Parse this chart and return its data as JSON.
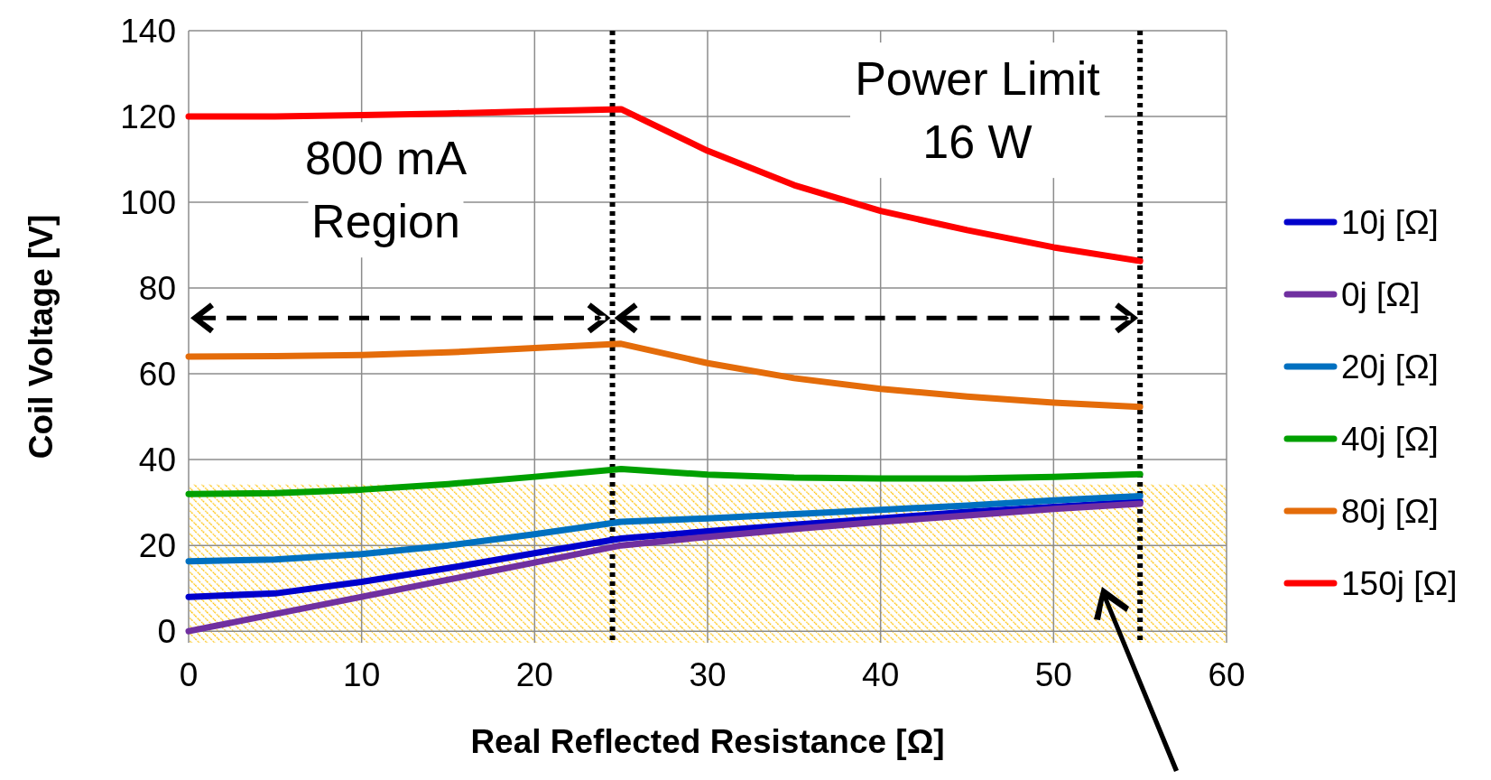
{
  "chart_data": {
    "type": "line",
    "xlabel": "Real Reflected Resistance [Ω]",
    "ylabel": "Coil Voltage [V]",
    "x": [
      0,
      5,
      10,
      15,
      20,
      25,
      30,
      35,
      40,
      45,
      50,
      55
    ],
    "series": [
      {
        "name": "10j [Ω]",
        "color": "#0000cc",
        "values": [
          8,
          8.8,
          11.5,
          14.7,
          18.2,
          21.6,
          23.3,
          24.8,
          26.3,
          27.8,
          29,
          30.2
        ]
      },
      {
        "name": "0j [Ω]",
        "color": "#7030a0",
        "values": [
          0,
          4,
          8,
          12,
          16,
          20,
          22,
          23.8,
          25.5,
          27,
          28.5,
          29.7
        ]
      },
      {
        "name": "20j [Ω]",
        "color": "#0070c0",
        "values": [
          16.3,
          16.7,
          18,
          20,
          22.6,
          25.5,
          26.3,
          27.3,
          28.3,
          29.3,
          30.5,
          31.5
        ]
      },
      {
        "name": "40j [Ω]",
        "color": "#00a000",
        "values": [
          32,
          32.2,
          33,
          34.3,
          36,
          37.8,
          36.5,
          35.8,
          35.6,
          35.6,
          36,
          36.6
        ]
      },
      {
        "name": "80j [Ω]",
        "color": "#e46c0a",
        "values": [
          64,
          64.1,
          64.4,
          65,
          66,
          67,
          62.5,
          59,
          56.5,
          54.7,
          53.3,
          52.3
        ]
      },
      {
        "name": "150j [Ω]",
        "color": "#ff0000",
        "values": [
          120,
          120,
          120.3,
          120.7,
          121.2,
          121.7,
          112,
          104,
          98,
          93.5,
          89.5,
          86.3
        ]
      }
    ],
    "xlim": [
      0,
      60
    ],
    "xticks": [
      0,
      10,
      20,
      30,
      40,
      50,
      60
    ],
    "ylim": [
      -2.7,
      140
    ],
    "yticks": [
      0,
      20,
      40,
      60,
      80,
      100,
      120,
      140
    ],
    "ref_lines": [
      {
        "axis": "x",
        "value": 24.5,
        "color": "#000000",
        "line_style": "dotted"
      },
      {
        "axis": "x",
        "value": 55,
        "color": "#000000",
        "line_style": "dotted"
      }
    ],
    "bands": [
      {
        "axis": "y",
        "from": -2.7,
        "to": 34.2,
        "color": "#ffc000"
      }
    ],
    "annotations": [
      "800 mA\nRegion",
      "Power Limit\n16 W"
    ],
    "grid": true,
    "legend": "right",
    "marker": "none",
    "line_style": "solid"
  }
}
